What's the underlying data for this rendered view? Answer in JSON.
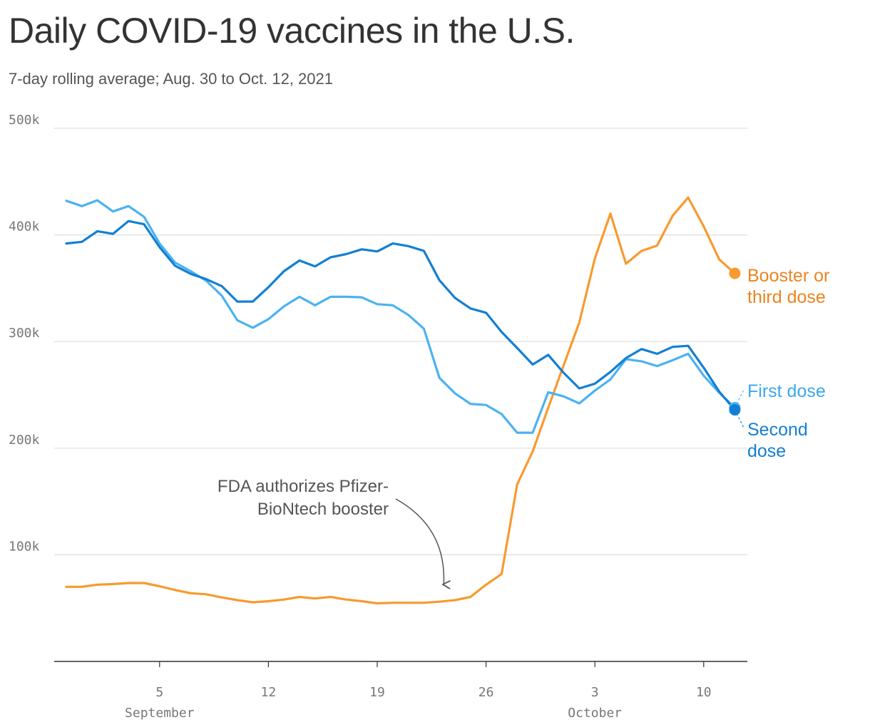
{
  "header": {
    "title": "Daily COVID-19 vaccines in the U.S.",
    "subtitle": "7-day rolling average; Aug. 30 to Oct. 12, 2021"
  },
  "chart_data": {
    "type": "line",
    "title": "Daily COVID-19 vaccines in the U.S.",
    "subtitle": "7-day rolling average; Aug. 30 to Oct. 12, 2021",
    "x": [
      "2021-08-30",
      "2021-08-31",
      "2021-09-01",
      "2021-09-02",
      "2021-09-03",
      "2021-09-04",
      "2021-09-05",
      "2021-09-06",
      "2021-09-07",
      "2021-09-08",
      "2021-09-09",
      "2021-09-10",
      "2021-09-11",
      "2021-09-12",
      "2021-09-13",
      "2021-09-14",
      "2021-09-15",
      "2021-09-16",
      "2021-09-17",
      "2021-09-18",
      "2021-09-19",
      "2021-09-20",
      "2021-09-21",
      "2021-09-22",
      "2021-09-23",
      "2021-09-24",
      "2021-09-25",
      "2021-09-26",
      "2021-09-27",
      "2021-09-28",
      "2021-09-29",
      "2021-09-30",
      "2021-10-01",
      "2021-10-02",
      "2021-10-03",
      "2021-10-04",
      "2021-10-05",
      "2021-10-06",
      "2021-10-07",
      "2021-10-08",
      "2021-10-09",
      "2021-10-10",
      "2021-10-11",
      "2021-10-12"
    ],
    "ylim": [
      0,
      500000
    ],
    "yticks": [
      {
        "value": 100000,
        "label": "100k"
      },
      {
        "value": 200000,
        "label": "200k"
      },
      {
        "value": 300000,
        "label": "300k"
      },
      {
        "value": 400000,
        "label": "400k"
      },
      {
        "value": 500000,
        "label": "500k"
      }
    ],
    "xticks": [
      {
        "date": "2021-09-05",
        "label": "5",
        "month": "September"
      },
      {
        "date": "2021-09-12",
        "label": "12",
        "month": ""
      },
      {
        "date": "2021-09-19",
        "label": "19",
        "month": ""
      },
      {
        "date": "2021-09-26",
        "label": "26",
        "month": ""
      },
      {
        "date": "2021-10-03",
        "label": "3",
        "month": "October"
      },
      {
        "date": "2021-10-10",
        "label": "10",
        "month": ""
      }
    ],
    "grid": true,
    "series": [
      {
        "name": "Booster or third dose",
        "label_lines": [
          "Booster or",
          "third dose"
        ],
        "color": "#f89a2e",
        "label_color": "#ec8420",
        "values": [
          70000,
          70000,
          72000,
          72500,
          73500,
          73500,
          70500,
          67000,
          64000,
          63000,
          60000,
          57500,
          55500,
          56500,
          58000,
          60500,
          59000,
          60500,
          58000,
          56500,
          54500,
          55000,
          55000,
          55000,
          56000,
          57500,
          60500,
          72000,
          82000,
          166000,
          197000,
          238000,
          278000,
          318000,
          378000,
          420000,
          373000,
          385000,
          390000,
          418000,
          435000,
          408000,
          377000,
          364000
        ]
      },
      {
        "name": "First dose",
        "label_lines": [
          "First dose"
        ],
        "color": "#4bb2f2",
        "label_color": "#3aa8ee",
        "values": [
          432000,
          427000,
          432500,
          422000,
          427000,
          417000,
          392000,
          374000,
          366000,
          357000,
          343000,
          320000,
          313000,
          321000,
          333000,
          342000,
          334000,
          342000,
          342000,
          341500,
          335000,
          334000,
          325000,
          312000,
          266000,
          251500,
          241500,
          240500,
          232000,
          214500,
          214500,
          252500,
          248500,
          242000,
          254000,
          264500,
          283500,
          281500,
          277000,
          282500,
          288500,
          268000,
          252000,
          238000
        ]
      },
      {
        "name": "Second dose",
        "label_lines": [
          "Second",
          "dose"
        ],
        "color": "#137fd3",
        "label_color": "#137fd3",
        "values": [
          392000,
          393500,
          403500,
          401000,
          413000,
          410000,
          388500,
          371000,
          363500,
          358500,
          352000,
          337500,
          337500,
          351000,
          366000,
          376000,
          370500,
          379000,
          382000,
          386500,
          384500,
          392000,
          389500,
          385000,
          357500,
          341000,
          331000,
          327000,
          309000,
          294000,
          278500,
          287500,
          270500,
          256000,
          260500,
          271500,
          284500,
          293000,
          288500,
          295000,
          296000,
          275500,
          253000,
          236000
        ]
      }
    ],
    "annotations": [
      {
        "text_lines": [
          "FDA authorizes Pfizer-",
          "BioNtech booster"
        ],
        "target_date": "2021-09-23"
      }
    ]
  }
}
